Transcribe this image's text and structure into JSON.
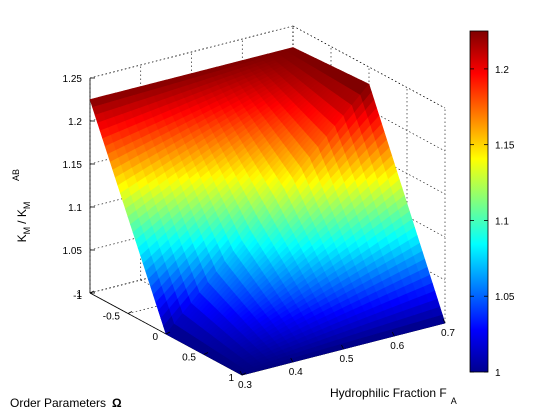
{
  "chart_data": [
    {
      "type": "surface",
      "xlabel": "Hydrophilic Fraction F",
      "xlabel_sub": "A",
      "ylabel": "Order Parameters",
      "ylabel_symbol": "Ω",
      "zlabel": "K",
      "zlabel_sub": "M",
      "zlabel_sep": "/ K",
      "zlabel_sup": "AB",
      "zlabel_sub2": "M",
      "x_ticks": [
        "0.3",
        "0.4",
        "0.5",
        "0.6",
        "0.7"
      ],
      "x_tick_values": [
        0.3,
        0.4,
        0.5,
        0.6,
        0.7
      ],
      "y_ticks": [
        "-1",
        "-0.5",
        "0",
        "0.5",
        "1"
      ],
      "y_tick_values": [
        -1,
        -0.5,
        0,
        0.5,
        1
      ],
      "z_ticks": [
        "1",
        "1.05",
        "1.1",
        "1.15",
        "1.2",
        "1.25"
      ],
      "z_tick_values": [
        1,
        1.05,
        1.1,
        1.15,
        1.2,
        1.25
      ],
      "xlim": [
        0.3,
        0.7
      ],
      "ylim": [
        -1,
        1
      ],
      "zlim": [
        1,
        1.25
      ],
      "grid": true,
      "colormap": "jet",
      "surface": {
        "x": [
          0.3,
          0.7
        ],
        "omega": [
          -1,
          0,
          1
        ],
        "z": [
          [
            1.225,
            1.0,
            1.0
          ],
          [
            1.225,
            1.23,
            1.0
          ]
        ],
        "comment_rows": "z[i][j] = value at x[i], omega[j]"
      }
    },
    {
      "type": "colorbar",
      "ticks": [
        "1",
        "1.05",
        "1.1",
        "1.15",
        "1.2"
      ],
      "tick_values": [
        1,
        1.05,
        1.1,
        1.15,
        1.2
      ],
      "range": [
        1,
        1.225
      ]
    }
  ]
}
